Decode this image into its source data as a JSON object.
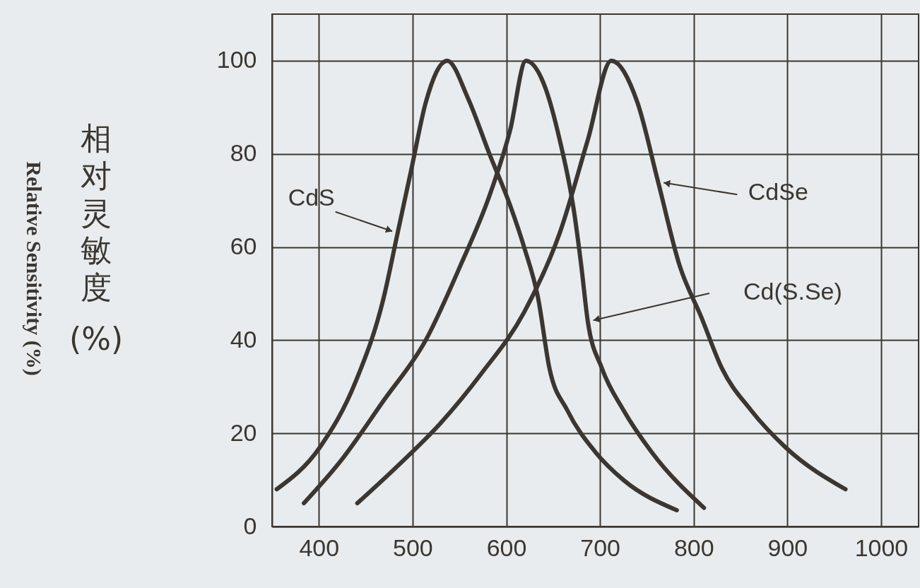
{
  "chart_data": {
    "type": "line",
    "ylabel": "相对灵敏度 (%)",
    "annotations": [
      "Relative Sensitivity (%)"
    ],
    "xlim": [
      350,
      1040
    ],
    "ylim": [
      0,
      110
    ],
    "xticks": [
      400,
      500,
      600,
      700,
      800,
      900,
      1000
    ],
    "yticks": [
      0,
      20,
      40,
      60,
      80,
      100
    ],
    "grid": true,
    "legend": "right",
    "marker": "none",
    "line_style": "solid",
    "series": [
      {
        "name": "CdS",
        "color": "#3b3631",
        "x": [
          355,
          401,
          439,
          469,
          484,
          499,
          514,
          537,
          559,
          582,
          604,
          619,
          634,
          646,
          665,
          695,
          725,
          782
        ],
        "values": [
          8,
          17,
          31,
          49,
          63,
          77,
          91,
          100,
          92,
          80,
          69,
          60,
          49,
          34,
          25,
          16,
          10,
          3.5
        ]
      },
      {
        "name": "Cd(S.Se)",
        "color": "#3b3631",
        "x": [
          384,
          423,
          469,
          514,
          551,
          582,
          604,
          621,
          642,
          657,
          672,
          680,
          687,
          702,
          725,
          755,
          811
        ],
        "values": [
          5,
          14,
          27,
          40,
          56,
          71,
          85,
          100,
          94,
          83,
          68,
          56,
          44,
          34,
          25,
          16,
          4
        ]
      },
      {
        "name": "CdSe",
        "color": "#3b3631",
        "x": [
          441,
          484,
          529,
          574,
          619,
          657,
          687,
          712,
          740,
          762,
          785,
          808,
          830,
          861,
          898,
          962
        ],
        "values": [
          5,
          13,
          22,
          33,
          46,
          63,
          83,
          100,
          91,
          74,
          56,
          45,
          34,
          25,
          17,
          8
        ]
      }
    ]
  }
}
